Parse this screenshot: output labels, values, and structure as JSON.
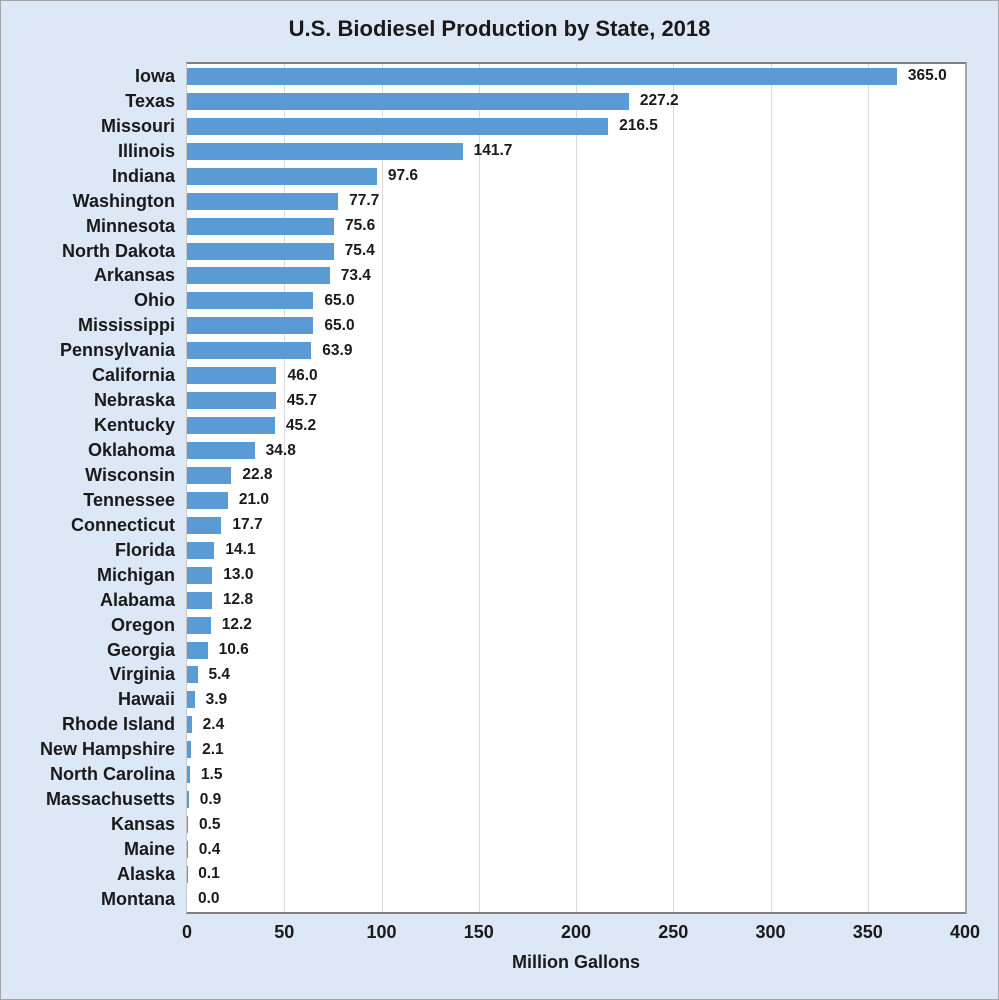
{
  "chart_data": {
    "type": "bar",
    "orientation": "horizontal",
    "title": "U.S. Biodiesel Production by State, 2018",
    "xlabel": "Million Gallons",
    "ylabel": "",
    "xlim": [
      0,
      400
    ],
    "xticks": [
      0,
      50,
      100,
      150,
      200,
      250,
      300,
      350,
      400
    ],
    "grid": true,
    "legend": false,
    "value_labels_shown": true,
    "colors": {
      "bar": "#5b9bd5",
      "figure_background": "#dce8f5",
      "plot_background": "#ffffff",
      "gridline": "#d9d9d9",
      "text": "#1a1a1a"
    },
    "categories": [
      "Iowa",
      "Texas",
      "Missouri",
      "Illinois",
      "Indiana",
      "Washington",
      "Minnesota",
      "North Dakota",
      "Arkansas",
      "Ohio",
      "Mississippi",
      "Pennsylvania",
      "California",
      "Nebraska",
      "Kentucky",
      "Oklahoma",
      "Wisconsin",
      "Tennessee",
      "Connecticut",
      "Florida",
      "Michigan",
      "Alabama",
      "Oregon",
      "Georgia",
      "Virginia",
      "Hawaii",
      "Rhode Island",
      "New Hampshire",
      "North Carolina",
      "Massachusetts",
      "Kansas",
      "Maine",
      "Alaska",
      "Montana"
    ],
    "values": [
      365.0,
      227.2,
      216.5,
      141.7,
      97.6,
      77.7,
      75.6,
      75.4,
      73.4,
      65.0,
      65.0,
      63.9,
      46.0,
      45.7,
      45.2,
      34.8,
      22.8,
      21.0,
      17.7,
      14.1,
      13.0,
      12.8,
      12.2,
      10.6,
      5.4,
      3.9,
      2.4,
      2.1,
      1.5,
      0.9,
      0.5,
      0.4,
      0.1,
      0.0
    ]
  }
}
